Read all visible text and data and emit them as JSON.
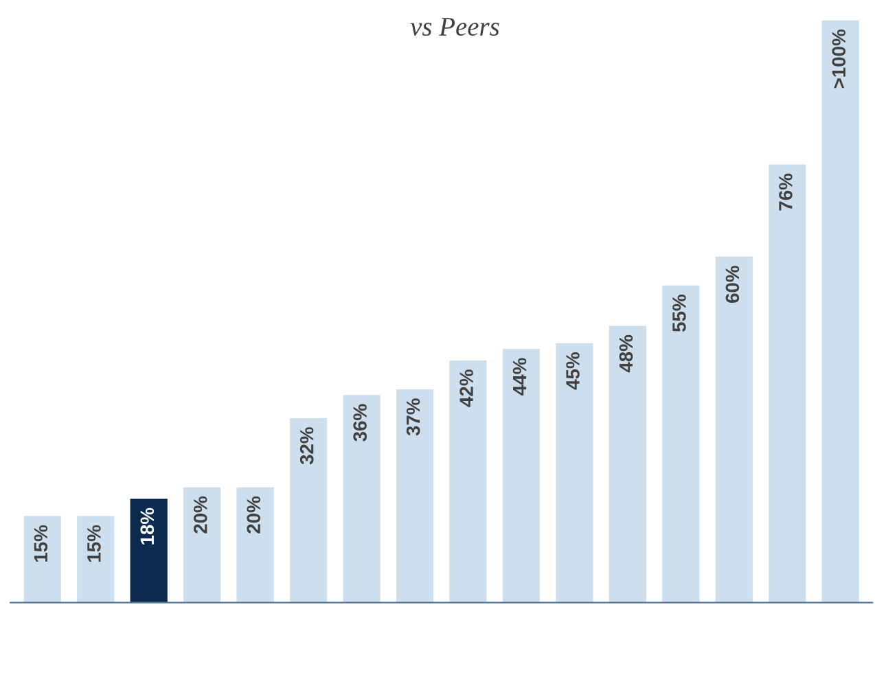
{
  "chart_data": {
    "type": "bar",
    "title": "vs Peers",
    "categories": [
      null,
      null,
      null,
      null,
      null,
      null,
      null,
      null,
      null,
      null,
      null,
      null,
      null,
      null,
      null,
      null
    ],
    "values": [
      15,
      15,
      18,
      20,
      20,
      32,
      36,
      37,
      42,
      44,
      45,
      48,
      55,
      60,
      76,
      101
    ],
    "value_labels": [
      "15%",
      "15%",
      "18%",
      "20%",
      "20%",
      "32%",
      "36%",
      "37%",
      "42%",
      "44%",
      "45%",
      "48%",
      "55%",
      "60%",
      "76%",
      ">100%"
    ],
    "colors": [
      "#cddfed",
      "#cddfed",
      "#0c2a4e",
      "#cddfed",
      "#cddfed",
      "#cddfed",
      "#cddfed",
      "#cddfed",
      "#cddfed",
      "#cddfed",
      "#cddfed",
      "#cddfed",
      "#cddfed",
      "#cddfed",
      "#cddfed",
      "#cddfed"
    ],
    "grid": false,
    "legend": false
  }
}
